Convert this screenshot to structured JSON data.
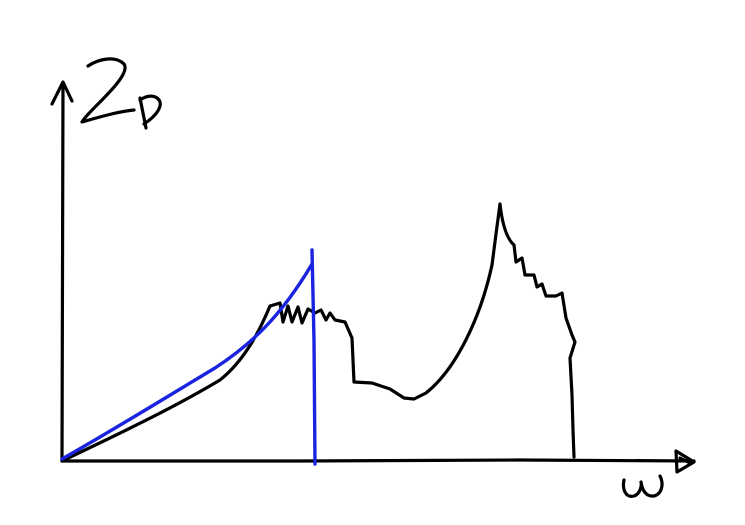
{
  "colors": {
    "background": "#ffffff",
    "ink": "#000000",
    "highlight": "#1a24e0"
  },
  "labels": {
    "y_axis": "Z_D",
    "x_axis": "ω"
  }
}
